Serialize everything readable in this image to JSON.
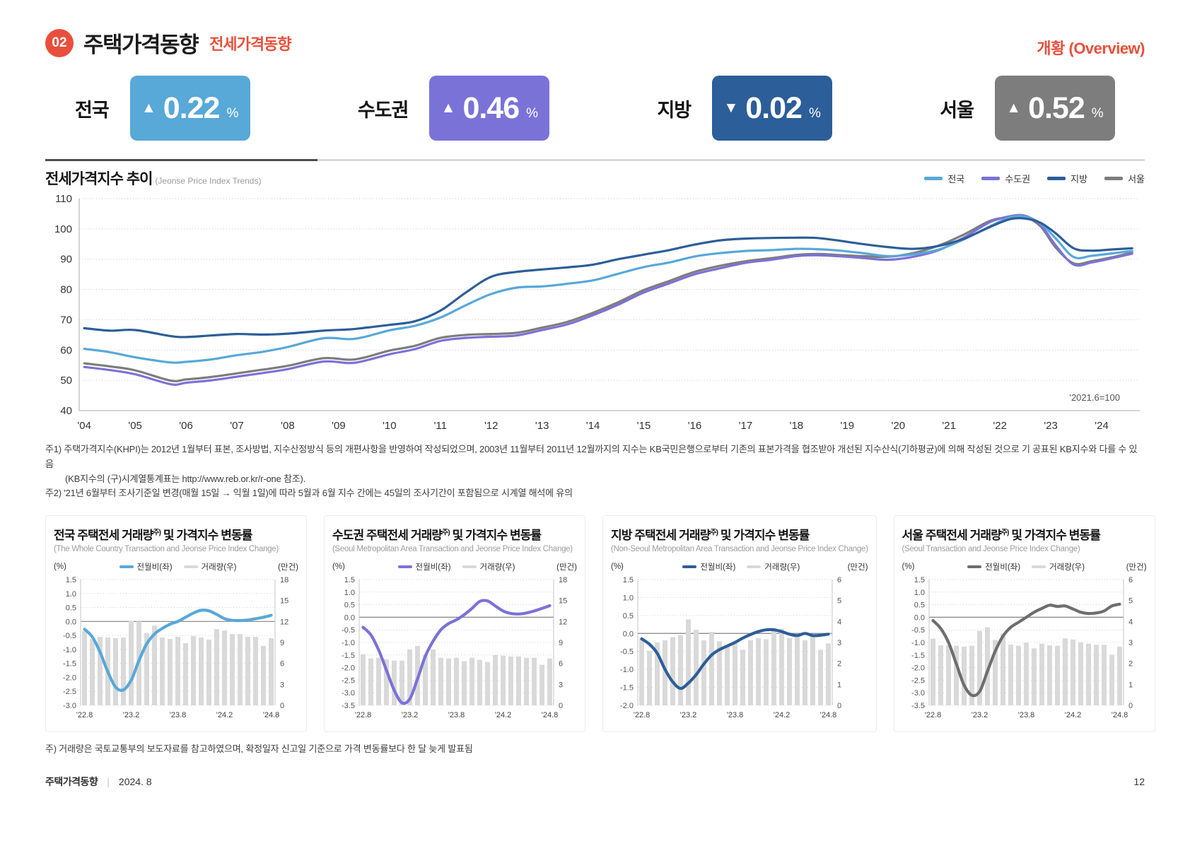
{
  "header": {
    "badge": "02",
    "title": "주택가격동향",
    "subtitle": "전세가격동향",
    "overview": "개황 (Overview)"
  },
  "stats": [
    {
      "label": "전국",
      "arrow": "▲",
      "direction": "up",
      "value": "0.22",
      "unit": "%",
      "color": "#58a8d8"
    },
    {
      "label": "수도권",
      "arrow": "▲",
      "direction": "up",
      "value": "0.46",
      "unit": "%",
      "color": "#7b72d8"
    },
    {
      "label": "지방",
      "arrow": "▼",
      "direction": "down",
      "value": "0.02",
      "unit": "%",
      "color": "#2c5e99"
    },
    {
      "label": "서울",
      "arrow": "▲",
      "direction": "up",
      "value": "0.52",
      "unit": "%",
      "color": "#7d7d7d"
    }
  ],
  "index_section": {
    "title": "전세가격지수 추이",
    "title_en": "(Jeonse Price Index Trends)"
  },
  "footnotes": [
    "주1) 주택가격지수(KHPI)는 2012년 1월부터 표본, 조사방법, 지수산정방식 등의 개편사항을 반영하여 작성되었으며, 2003년 11월부터 2011년 12월까지의 지수는 KB국민은행으로부터 기존의 표본가격을 협조받아 개선된 지수산식(기하평균)에 의해 작성된 것으로 기 공표된 KB지수와 다를 수 있음",
    "(KB지수의 (구)시계열통계표는 http://www.reb.or.kr/r-one 참조).",
    "주2) '21년 6월부터 조사기준일 변경(매월 15일 → 익월 1일)에 따라 5월과 6월 지수 간에는 45일의 조사기간이 포함됨으로 시계열 해석에 유의"
  ],
  "mini_note": "주) 거래량은 국토교통부의 보도자료를 참고하였으며, 확정일자 신고일 기준으로 가격 변동률보다 한 달 늦게 발표됨",
  "footer": {
    "left": "주택가격동향",
    "divider": "|",
    "date": "2024. 8",
    "page": "12"
  },
  "chart_data": [
    {
      "id": "jeonse-price-index-trend",
      "type": "line",
      "title": "전세가격지수 추이 (Jeonse Price Index Trends)",
      "annotation": "'2021.6=100",
      "ylim": [
        40,
        110
      ],
      "yticks": [
        40,
        50,
        60,
        70,
        80,
        90,
        100,
        110
      ],
      "xticks": [
        2004,
        2005,
        2006,
        2007,
        2008,
        2009,
        2010,
        2011,
        2012,
        2013,
        2014,
        2015,
        2016,
        2017,
        2018,
        2019,
        2020,
        2021,
        2022,
        2023,
        2024
      ],
      "xtick_labels": [
        "'04",
        "'05",
        "'06",
        "'07",
        "'08",
        "'09",
        "'10",
        "'11",
        "'12",
        "'13",
        "'14",
        "'15",
        "'16",
        "'17",
        "'18",
        "'19",
        "'20",
        "'21",
        "'22",
        "'23",
        "'24"
      ],
      "grid": "dotted-horizontal",
      "legend_position": "top-right",
      "x": [
        2004.0,
        2004.5,
        2005.0,
        2005.7,
        2006.0,
        2006.5,
        2007.0,
        2007.5,
        2008.0,
        2008.7,
        2009.2,
        2009.5,
        2010.0,
        2010.5,
        2011.0,
        2011.5,
        2012.0,
        2012.5,
        2013.0,
        2013.5,
        2014.0,
        2014.5,
        2015.0,
        2015.5,
        2016.0,
        2016.5,
        2017.0,
        2017.5,
        2018.0,
        2018.4,
        2018.8,
        2019.3,
        2019.8,
        2020.3,
        2020.8,
        2021.3,
        2021.8,
        2022.2,
        2022.5,
        2022.8,
        2023.1,
        2023.45,
        2023.8,
        2024.2,
        2024.6
      ],
      "series": [
        {
          "name": "전국",
          "color": "#58a8d8",
          "values": [
            60.4,
            59.3,
            57.6,
            55.9,
            56.1,
            56.9,
            58.3,
            59.4,
            61.0,
            63.9,
            63.6,
            64.3,
            66.5,
            68.0,
            70.7,
            74.8,
            78.5,
            80.6,
            81.0,
            81.9,
            83.0,
            85.2,
            87.4,
            88.9,
            90.9,
            92.0,
            92.7,
            93.0,
            93.4,
            93.3,
            92.9,
            92.0,
            91.0,
            91.6,
            93.2,
            96.6,
            100.8,
            103.8,
            104.0,
            101.8,
            96.8,
            90.7,
            91.1,
            91.9,
            92.7
          ]
        },
        {
          "name": "수도권",
          "color": "#7b72d8",
          "values": [
            54.4,
            53.4,
            52.0,
            48.7,
            49.2,
            50.0,
            51.2,
            52.4,
            53.7,
            56.2,
            55.7,
            56.4,
            58.6,
            60.3,
            63.0,
            64.0,
            64.4,
            64.8,
            66.6,
            68.5,
            71.5,
            75.0,
            79.0,
            82.0,
            85.0,
            87.0,
            88.8,
            89.8,
            91.0,
            91.3,
            91.0,
            90.4,
            89.8,
            90.8,
            93.0,
            97.2,
            102.2,
            104.2,
            104.3,
            101.3,
            94.5,
            88.2,
            88.9,
            90.3,
            91.8
          ]
        },
        {
          "name": "지방",
          "color": "#2c5e99",
          "values": [
            67.2,
            66.4,
            66.6,
            64.6,
            64.3,
            64.8,
            65.3,
            65.1,
            65.4,
            66.4,
            66.8,
            67.3,
            68.3,
            69.5,
            73.0,
            79.0,
            84.2,
            85.8,
            86.6,
            87.3,
            88.2,
            90.0,
            91.5,
            93.0,
            94.8,
            96.2,
            96.8,
            97.0,
            97.1,
            97.0,
            96.2,
            95.0,
            94.0,
            93.4,
            94.4,
            96.8,
            100.6,
            103.2,
            103.4,
            102.0,
            98.5,
            93.6,
            92.8,
            93.2,
            93.6
          ]
        },
        {
          "name": "서울",
          "color": "#7d7d7d",
          "values": [
            55.6,
            54.6,
            53.3,
            49.9,
            50.3,
            51.1,
            52.3,
            53.5,
            54.8,
            57.3,
            56.8,
            57.5,
            59.8,
            61.4,
            64.0,
            65.0,
            65.3,
            65.7,
            67.4,
            69.3,
            72.3,
            75.8,
            79.8,
            82.8,
            85.8,
            87.8,
            89.3,
            90.3,
            91.4,
            91.7,
            91.4,
            91.0,
            90.8,
            92.0,
            94.5,
            98.2,
            102.6,
            103.9,
            103.9,
            100.8,
            93.8,
            88.6,
            89.3,
            90.6,
            92.2
          ]
        }
      ]
    },
    {
      "id": "mini-national",
      "type": "line+bar",
      "title_prefix": "전국 주택전세 거래량",
      "title_sup": "주)",
      "title_suffix": " 및 가격지수 변동률",
      "subtitle": "(The Whole Country Transaction and Jeonse Price Index Change)",
      "unit_left": "(%)",
      "unit_right": "(만건)",
      "legend": [
        {
          "label": "전월비(좌)",
          "color": "#58a8d8",
          "type": "line"
        },
        {
          "label": "거래량(우)",
          "color": "#d9d9d9",
          "type": "bar"
        }
      ],
      "ylim_left": [
        -3.0,
        1.5
      ],
      "yticks_left": [
        1.5,
        1.0,
        0.5,
        0.0,
        -0.5,
        -1.0,
        -1.5,
        -2.0,
        -2.5,
        -3.0
      ],
      "ylim_right": [
        0,
        18
      ],
      "yticks_right": [
        18,
        15,
        12,
        9,
        6,
        3,
        0
      ],
      "x_labels": [
        "'22.8",
        "'23.2",
        "'23.8",
        "'24.2",
        "'24.8"
      ],
      "x_label_indices": [
        0,
        6,
        12,
        18,
        24
      ],
      "line_values": [
        -0.28,
        -0.55,
        -1.1,
        -1.8,
        -2.35,
        -2.45,
        -2.1,
        -1.4,
        -0.8,
        -0.45,
        -0.25,
        -0.1,
        0.0,
        0.15,
        0.3,
        0.4,
        0.38,
        0.25,
        0.1,
        0.04,
        0.03,
        0.05,
        0.1,
        0.15,
        0.22
      ],
      "bar_values": [
        10.6,
        9.5,
        9.8,
        9.7,
        9.6,
        9.7,
        12.1,
        12.0,
        10.3,
        11.4,
        9.7,
        9.5,
        9.8,
        8.9,
        9.9,
        9.7,
        9.4,
        10.9,
        10.7,
        10.2,
        10.2,
        9.8,
        9.8,
        8.5,
        9.6
      ]
    },
    {
      "id": "mini-metropolitan",
      "type": "line+bar",
      "title_prefix": "수도권 주택전세 거래량",
      "title_sup": "주)",
      "title_suffix": " 및 가격지수 변동률",
      "subtitle": "(Seoul Metropolitan Area Transaction and Jeonse Price Index Change)",
      "unit_left": "(%)",
      "unit_right": "(만건)",
      "legend": [
        {
          "label": "전월비(좌)",
          "color": "#7b72d8",
          "type": "line"
        },
        {
          "label": "거래량(우)",
          "color": "#d9d9d9",
          "type": "bar"
        }
      ],
      "ylim_left": [
        -3.5,
        1.5
      ],
      "yticks_left": [
        1.5,
        1.0,
        0.5,
        0.0,
        -0.5,
        -1.0,
        -1.5,
        -2.0,
        -2.5,
        -3.0,
        -3.5
      ],
      "ylim_right": [
        0,
        18
      ],
      "yticks_right": [
        18,
        15,
        12,
        9,
        6,
        3,
        0
      ],
      "x_labels": [
        "'22.8",
        "'23.2",
        "'23.8",
        "'24.2",
        "'24.8"
      ],
      "x_label_indices": [
        0,
        6,
        12,
        18,
        24
      ],
      "line_values": [
        -0.4,
        -0.7,
        -1.3,
        -2.1,
        -2.9,
        -3.4,
        -3.25,
        -2.45,
        -1.55,
        -0.95,
        -0.5,
        -0.25,
        -0.1,
        0.1,
        0.35,
        0.63,
        0.65,
        0.45,
        0.25,
        0.15,
        0.13,
        0.17,
        0.25,
        0.35,
        0.46
      ],
      "bar_values": [
        7.3,
        6.7,
        6.8,
        6.6,
        6.4,
        6.4,
        8.0,
        8.5,
        7.2,
        8.0,
        6.8,
        6.7,
        6.8,
        6.3,
        6.8,
        6.5,
        6.2,
        7.2,
        7.1,
        7.0,
        7.0,
        6.8,
        6.8,
        5.8,
        6.7
      ]
    },
    {
      "id": "mini-provincial",
      "type": "line+bar",
      "title_prefix": "지방 주택전세 거래량",
      "title_sup": "주)",
      "title_suffix": " 및 가격지수 변동률",
      "subtitle": "(Non-Seoul Metropolitan Area Transaction and Jeonse Price Index Change)",
      "unit_left": "(%)",
      "unit_right": "(만건)",
      "legend": [
        {
          "label": "전월비(좌)",
          "color": "#2c5e99",
          "type": "line"
        },
        {
          "label": "거래량(우)",
          "color": "#d9d9d9",
          "type": "bar"
        }
      ],
      "ylim_left": [
        -2.0,
        1.5
      ],
      "yticks_left": [
        1.5,
        1.0,
        0.5,
        0.0,
        -0.5,
        -1.0,
        -1.5,
        -2.0
      ],
      "ylim_right": [
        0,
        6
      ],
      "yticks_right": [
        6,
        5,
        4,
        3,
        2,
        1,
        0
      ],
      "x_labels": [
        "'22.8",
        "'23.2",
        "'23.8",
        "'24.2",
        "'24.8"
      ],
      "x_label_indices": [
        0,
        6,
        12,
        18,
        24
      ],
      "line_values": [
        -0.15,
        -0.3,
        -0.55,
        -1.0,
        -1.35,
        -1.53,
        -1.38,
        -1.15,
        -0.85,
        -0.6,
        -0.45,
        -0.35,
        -0.25,
        -0.13,
        -0.03,
        0.05,
        0.1,
        0.1,
        0.05,
        -0.02,
        -0.06,
        0.0,
        -0.06,
        -0.05,
        -0.02
      ],
      "bar_values": [
        3.2,
        2.6,
        3.0,
        3.1,
        3.25,
        3.35,
        4.1,
        3.6,
        3.1,
        3.5,
        3.05,
        2.85,
        2.95,
        2.65,
        3.1,
        3.2,
        3.15,
        3.7,
        3.65,
        3.2,
        3.25,
        3.1,
        3.3,
        2.65,
        2.95
      ]
    },
    {
      "id": "mini-seoul",
      "type": "line+bar",
      "title_prefix": "서울 주택전세 거래량",
      "title_sup": "주)",
      "title_suffix": " 및 가격지수 변동률",
      "subtitle": "(Seoul Transaction and Jeonse Price Index Change)",
      "unit_left": "(%)",
      "unit_right": "(만건)",
      "legend": [
        {
          "label": "전월비(좌)",
          "color": "#6e6e6e",
          "type": "line"
        },
        {
          "label": "거래량(우)",
          "color": "#d9d9d9",
          "type": "bar"
        }
      ],
      "ylim_left": [
        -3.5,
        1.5
      ],
      "yticks_left": [
        1.5,
        1.0,
        0.5,
        0.0,
        -0.5,
        -1.0,
        -1.5,
        -2.0,
        -2.5,
        -3.0,
        -3.5
      ],
      "ylim_right": [
        0,
        6
      ],
      "yticks_right": [
        6,
        5,
        4,
        3,
        2,
        1,
        0
      ],
      "x_labels": [
        "'22.8",
        "'23.2",
        "'23.8",
        "'24.2",
        "'24.8"
      ],
      "x_label_indices": [
        0,
        6,
        12,
        18,
        24
      ],
      "line_values": [
        -0.13,
        -0.45,
        -1.0,
        -1.85,
        -2.7,
        -3.1,
        -2.95,
        -2.15,
        -1.35,
        -0.75,
        -0.4,
        -0.2,
        0.0,
        0.2,
        0.35,
        0.48,
        0.43,
        0.45,
        0.33,
        0.2,
        0.15,
        0.17,
        0.25,
        0.45,
        0.52
      ],
      "bar_values": [
        3.18,
        2.86,
        2.86,
        2.84,
        2.8,
        2.84,
        3.55,
        3.72,
        3.12,
        3.43,
        2.9,
        2.84,
        2.99,
        2.72,
        2.94,
        2.86,
        2.84,
        3.19,
        3.14,
        3.01,
        2.94,
        2.89,
        2.89,
        2.41,
        2.8
      ]
    }
  ]
}
